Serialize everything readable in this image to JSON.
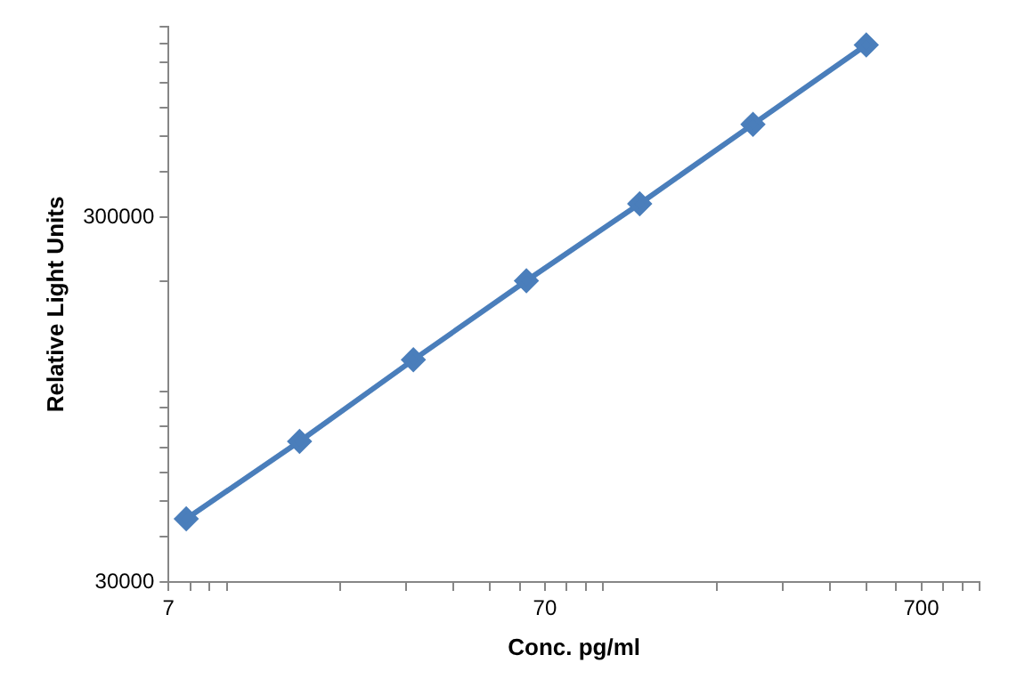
{
  "chart_data": {
    "type": "line",
    "xlabel": "Conc. pg/ml",
    "ylabel": "Relative Light Units",
    "log": "xy",
    "x": [
      7.8,
      15.6,
      31.3,
      62.5,
      125,
      250,
      500
    ],
    "series": [
      {
        "color": "#4a7ebb",
        "values": [
          44700,
          72900,
          122000,
          201000,
          327000,
          540000,
          891000
        ]
      }
    ],
    "xlim": [
      7,
      1000
    ],
    "xticks": [
      7,
      {
        "value": 8,
        "label": null
      },
      {
        "value": 9,
        "label": null
      },
      {
        "value": 10,
        "label": null
      },
      {
        "value": 20,
        "label": null
      },
      {
        "value": 30,
        "label": null
      },
      {
        "value": 40,
        "label": null
      },
      {
        "value": 50,
        "label": null
      },
      {
        "value": 60,
        "label": null
      },
      70,
      {
        "value": 80,
        "label": null
      },
      {
        "value": 90,
        "label": null
      },
      {
        "value": 100,
        "label": null
      },
      {
        "value": 200,
        "label": null
      },
      {
        "value": 300,
        "label": null
      },
      {
        "value": 400,
        "label": null
      },
      {
        "value": 500,
        "label": null
      },
      {
        "value": 600,
        "label": null
      },
      700,
      {
        "value": 800,
        "label": null
      },
      {
        "value": 900,
        "label": null
      },
      {
        "value": 1000,
        "label": null
      }
    ],
    "ylim": [
      30000,
      1000000
    ],
    "yticks": [
      30000,
      {
        "value": 40000,
        "label": null
      },
      {
        "value": 50000,
        "label": null
      },
      {
        "value": 60000,
        "label": null
      },
      {
        "value": 70000,
        "label": null
      },
      {
        "value": 80000,
        "label": null
      },
      {
        "value": 90000,
        "label": null
      },
      {
        "value": 100000,
        "label": null
      },
      {
        "value": 200000,
        "label": null
      },
      300000,
      {
        "value": 400000,
        "label": null
      },
      {
        "value": 500000,
        "label": null
      },
      {
        "value": 600000,
        "label": null
      },
      {
        "value": 700000,
        "label": null
      },
      {
        "value": 800000,
        "label": null
      },
      {
        "value": 900000,
        "label": null
      },
      {
        "value": 1000000,
        "label": null
      }
    ],
    "grid": false,
    "legend": false,
    "marker": "diamond",
    "line_style": "solid"
  }
}
